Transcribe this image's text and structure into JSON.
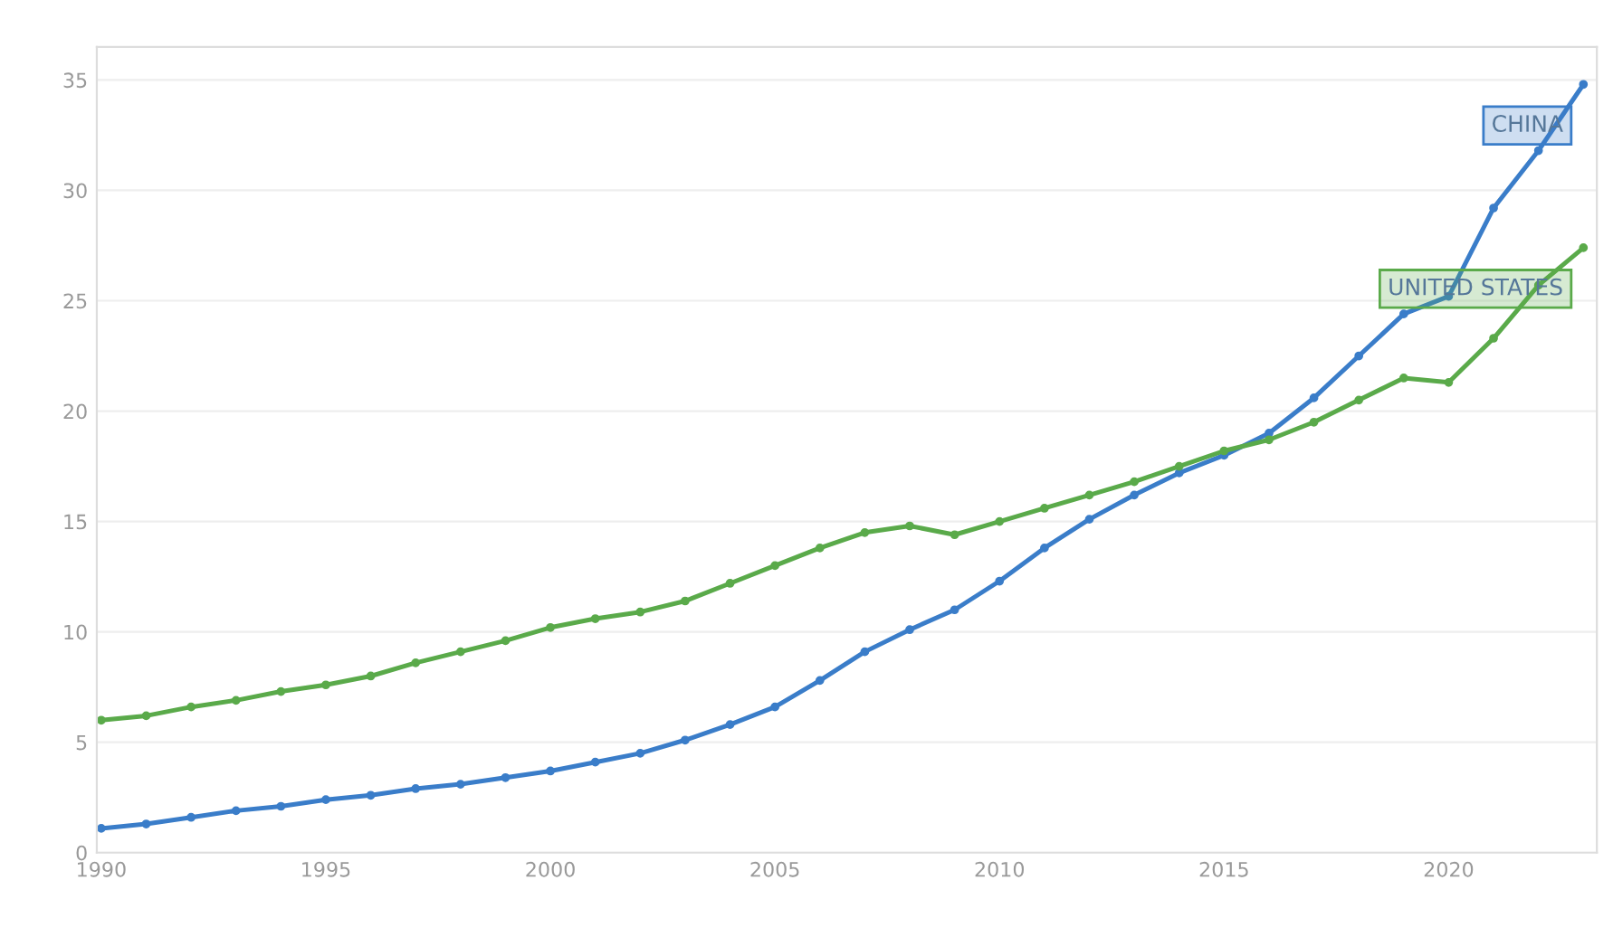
{
  "chart_data": {
    "type": "line",
    "x": [
      1990,
      1991,
      1992,
      1993,
      1994,
      1995,
      1996,
      1997,
      1998,
      1999,
      2000,
      2001,
      2002,
      2003,
      2004,
      2005,
      2006,
      2007,
      2008,
      2009,
      2010,
      2011,
      2012,
      2013,
      2014,
      2015,
      2016,
      2017,
      2018,
      2019,
      2020,
      2021,
      2022,
      2023
    ],
    "series": [
      {
        "name": "CHINA",
        "color": "#3a7dc9",
        "values": [
          1.1,
          1.3,
          1.6,
          1.9,
          2.1,
          2.4,
          2.6,
          2.9,
          3.1,
          3.4,
          3.7,
          4.1,
          4.5,
          5.1,
          5.8,
          6.6,
          7.8,
          9.1,
          10.1,
          11.0,
          12.3,
          13.8,
          15.1,
          16.2,
          17.2,
          18.0,
          19.0,
          20.6,
          22.5,
          24.4,
          25.2,
          29.2,
          31.8,
          34.8
        ]
      },
      {
        "name": "UNITED STATES",
        "color": "#5aaa4a",
        "values": [
          6.0,
          6.2,
          6.6,
          6.9,
          7.3,
          7.6,
          8.0,
          8.6,
          9.1,
          9.6,
          10.2,
          10.6,
          10.9,
          11.4,
          12.2,
          13.0,
          13.8,
          14.5,
          14.8,
          14.4,
          15.0,
          15.6,
          16.2,
          16.8,
          17.5,
          18.2,
          18.7,
          19.5,
          20.5,
          21.5,
          21.3,
          23.3,
          25.7,
          27.4
        ]
      }
    ],
    "xlim": [
      1989.9,
      2023.3
    ],
    "xticks": [
      1990,
      1995,
      2000,
      2005,
      2010,
      2015,
      2020
    ],
    "ylim": [
      0,
      36.5
    ],
    "yticks": [
      0,
      5,
      10,
      15,
      20,
      25,
      30,
      35
    ],
    "grid": "y",
    "marker": "circle",
    "line_style": "solid"
  }
}
